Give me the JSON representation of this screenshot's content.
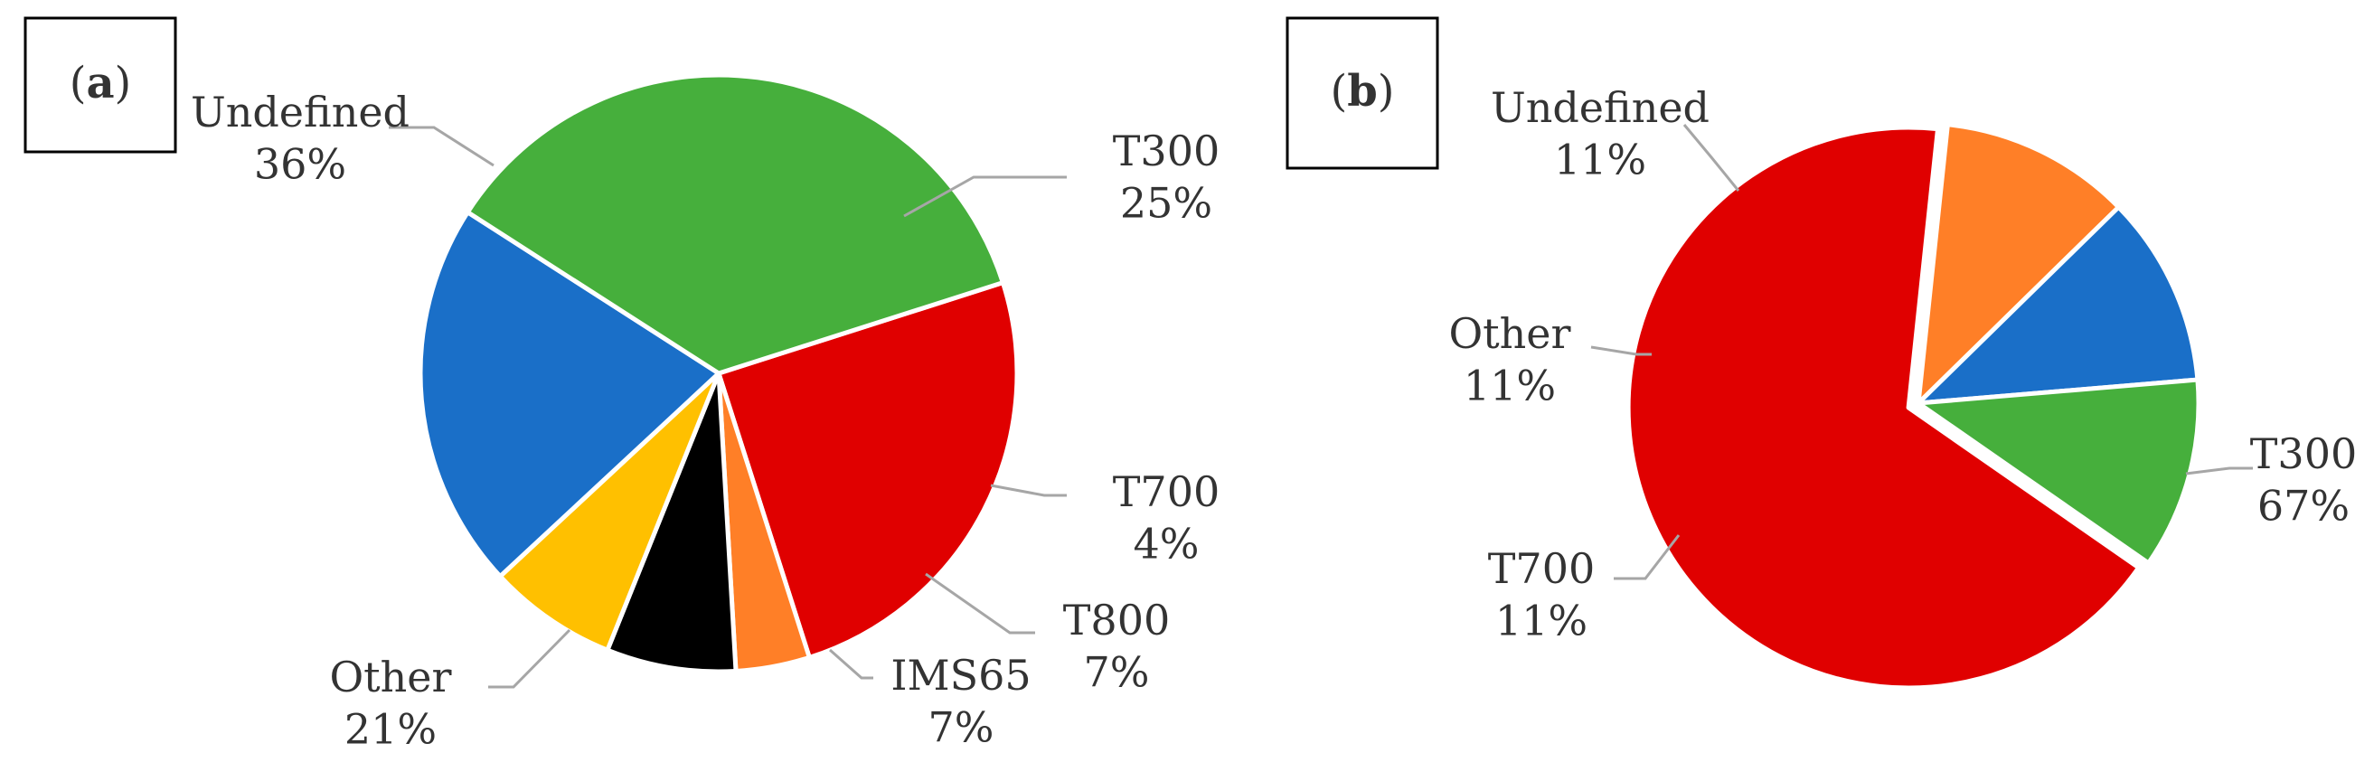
{
  "chart_data": [
    {
      "type": "pie",
      "panel_label": "a",
      "slices": [
        {
          "name": "T300",
          "value": 25,
          "label": "25%",
          "color": "#E00000"
        },
        {
          "name": "T700",
          "value": 4,
          "label": "4%",
          "color": "#FF7F27"
        },
        {
          "name": "T800",
          "value": 7,
          "label": "7%",
          "color": "#000000"
        },
        {
          "name": "IMS65",
          "value": 7,
          "label": "7%",
          "color": "#FFC000"
        },
        {
          "name": "Other",
          "value": 21,
          "label": "21%",
          "color": "#1A6FC8"
        },
        {
          "name": "Undefined",
          "value": 36,
          "label": "36%",
          "color": "#46AF3C"
        }
      ]
    },
    {
      "type": "pie",
      "panel_label": "b",
      "slices": [
        {
          "name": "T300",
          "value": 67,
          "label": "67%",
          "color": "#E00000"
        },
        {
          "name": "T700",
          "value": 11,
          "label": "11%",
          "color": "#FF7F27"
        },
        {
          "name": "Other",
          "value": 11,
          "label": "11%",
          "color": "#1A6FC8"
        },
        {
          "name": "Undefined",
          "value": 11,
          "label": "11%",
          "color": "#46AF3C"
        }
      ]
    }
  ]
}
